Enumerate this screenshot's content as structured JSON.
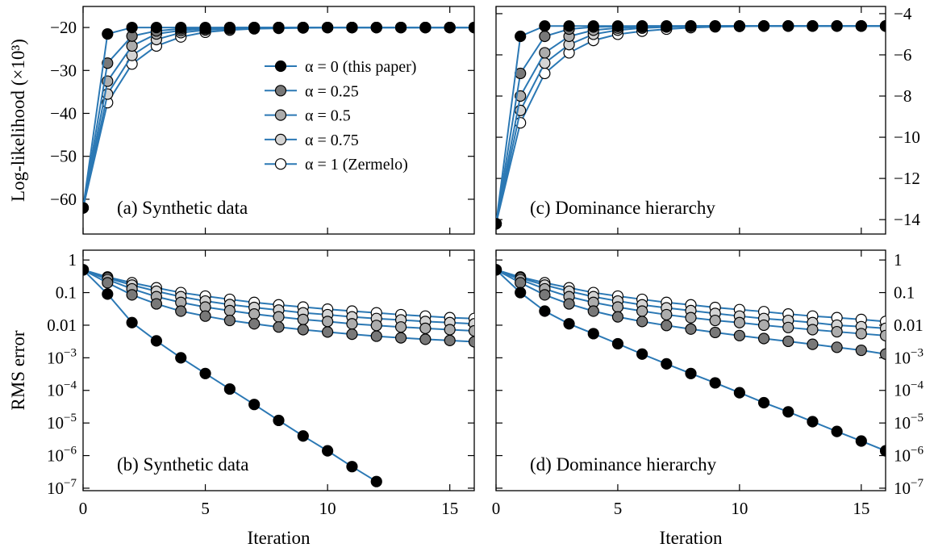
{
  "chart_data": [
    {
      "type": "line",
      "annotation": "(a) Synthetic data",
      "ylabel": "Log-likelihood (×10³)",
      "show_xtick_labels": false,
      "y_axis_side": "left",
      "legend": "upper right",
      "line_color": "#2b78b4",
      "log_y": false,
      "xlim": [
        0,
        16
      ],
      "xticks": [
        0,
        5,
        10,
        15
      ],
      "ylim": [
        -68.1,
        -15.1
      ],
      "yticks": [
        {
          "value": -20,
          "label": "−20"
        },
        {
          "value": -30,
          "label": "−30"
        },
        {
          "value": -40,
          "label": "−40"
        },
        {
          "value": -50,
          "label": "−50"
        },
        {
          "value": -60,
          "label": "−60"
        }
      ],
      "x": [
        0,
        1,
        2,
        3,
        4,
        5,
        6,
        7,
        8,
        9,
        10,
        11,
        12,
        13,
        14,
        15,
        16
      ],
      "series": [
        {
          "name": "α = 0 (this paper)",
          "color": "#000000",
          "values": [
            -62,
            -21.5,
            -20,
            -20,
            -20,
            -20,
            -20,
            -20,
            -20,
            -20,
            -20,
            -20,
            -20,
            -20,
            -20,
            -20,
            -20
          ]
        },
        {
          "name": "α = 0.25",
          "color": "#787878",
          "values": [
            -62,
            -28.3,
            -22,
            -20.8,
            -20.3,
            -20.1,
            -20,
            -20,
            -20,
            -20,
            -20,
            -20,
            -20,
            -20,
            -20,
            -20,
            -20
          ]
        },
        {
          "name": "α = 0.5",
          "color": "#acacac",
          "values": [
            -62,
            -32.5,
            -24.3,
            -21.5,
            -20.7,
            -20.3,
            -20.1,
            -20,
            -20,
            -20,
            -20,
            -20,
            -20,
            -20,
            -20,
            -20,
            -20
          ]
        },
        {
          "name": "α = 0.75",
          "color": "#d4d4d4",
          "values": [
            -62,
            -35.5,
            -26.5,
            -22.8,
            -21.2,
            -20.6,
            -20.3,
            -20.1,
            -20,
            -20,
            -20,
            -20,
            -20,
            -20,
            -20,
            -20,
            -20
          ]
        },
        {
          "name": "α = 1 (Zermelo)",
          "color": "#ffffff",
          "values": [
            -62,
            -37.5,
            -28.5,
            -24.3,
            -22.2,
            -21.1,
            -20.6,
            -20.3,
            -20.2,
            -20.1,
            -20,
            -20,
            -20,
            -20,
            -20,
            -20,
            -20
          ]
        }
      ]
    },
    {
      "type": "line",
      "annotation": "(b) Synthetic data",
      "ylabel": "RMS error",
      "xlabel": "Iteration",
      "show_xtick_labels": true,
      "y_axis_side": "left",
      "line_color": "#2b78b4",
      "log_y": true,
      "xlim": [
        0,
        16
      ],
      "xticks": [
        0,
        5,
        10,
        15
      ],
      "ylim": [
        8.4e-08,
        2
      ],
      "yticks": [
        1,
        0.1,
        0.01,
        {
          "value": 0.001,
          "label": "10",
          "superscript": "−3"
        },
        {
          "value": 0.0001,
          "label": "10",
          "superscript": "−4"
        },
        {
          "value": 1e-05,
          "label": "10",
          "superscript": "−5"
        },
        {
          "value": 1e-06,
          "label": "10",
          "superscript": "−6"
        },
        {
          "value": 1e-07,
          "label": "10",
          "superscript": "−7"
        }
      ],
      "x": [
        0,
        1,
        2,
        3,
        4,
        5,
        6,
        7,
        8,
        9,
        10,
        11,
        12,
        13,
        14,
        15,
        16
      ],
      "series": [
        {
          "color": "#000000",
          "values": [
            0.5,
            0.09,
            0.012,
            0.0033,
            0.001,
            0.00033,
            0.00011,
            3.7e-05,
            1.2e-05,
            4e-06,
            1.4e-06,
            4.6e-07,
            1.6e-07,
            null,
            null,
            null,
            null
          ]
        },
        {
          "color": "#787878",
          "values": [
            0.5,
            0.2,
            0.085,
            0.045,
            0.027,
            0.019,
            0.014,
            0.011,
            0.0088,
            0.0073,
            0.0062,
            0.0053,
            0.0046,
            0.0041,
            0.0037,
            0.0034,
            0.0031
          ]
        },
        {
          "color": "#acacac",
          "values": [
            0.5,
            0.25,
            0.13,
            0.075,
            0.05,
            0.036,
            0.028,
            0.022,
            0.018,
            0.015,
            0.013,
            0.011,
            0.0098,
            0.0088,
            0.008,
            0.0073,
            0.0067
          ]
        },
        {
          "color": "#d4d4d4",
          "values": [
            0.5,
            0.28,
            0.17,
            0.11,
            0.075,
            0.055,
            0.043,
            0.035,
            0.029,
            0.024,
            0.021,
            0.018,
            0.016,
            0.0145,
            0.013,
            0.012,
            0.011
          ]
        },
        {
          "color": "#ffffff",
          "values": [
            0.5,
            0.3,
            0.2,
            0.14,
            0.1,
            0.078,
            0.062,
            0.05,
            0.042,
            0.036,
            0.031,
            0.027,
            0.024,
            0.021,
            0.019,
            0.017,
            0.016
          ]
        }
      ]
    },
    {
      "type": "line",
      "annotation": "(c) Dominance hierarchy",
      "show_xtick_labels": false,
      "y_axis_side": "right",
      "line_color": "#2b78b4",
      "log_y": false,
      "xlim": [
        0,
        16
      ],
      "xticks": [
        0,
        5,
        10,
        15
      ],
      "ylim": [
        -14.7,
        -3.65
      ],
      "yticks": [
        {
          "value": -4,
          "label": "−4"
        },
        {
          "value": -6,
          "label": "−6"
        },
        {
          "value": -8,
          "label": "−8"
        },
        {
          "value": -10,
          "label": "−10"
        },
        {
          "value": -12,
          "label": "−12"
        },
        {
          "value": -14,
          "label": "−14"
        }
      ],
      "x": [
        0,
        1,
        2,
        3,
        4,
        5,
        6,
        7,
        8,
        9,
        10,
        11,
        12,
        13,
        14,
        15,
        16
      ],
      "series": [
        {
          "color": "#000000",
          "values": [
            -14.2,
            -5.1,
            -4.6,
            -4.6,
            -4.6,
            -4.6,
            -4.6,
            -4.6,
            -4.6,
            -4.6,
            -4.6,
            -4.6,
            -4.6,
            -4.6,
            -4.6,
            -4.6,
            -4.6
          ]
        },
        {
          "color": "#787878",
          "values": [
            -14.2,
            -6.9,
            -5.1,
            -4.75,
            -4.65,
            -4.62,
            -4.6,
            -4.6,
            -4.6,
            -4.6,
            -4.6,
            -4.6,
            -4.6,
            -4.6,
            -4.6,
            -4.6,
            -4.6
          ]
        },
        {
          "color": "#acacac",
          "values": [
            -14.2,
            -8,
            -5.9,
            -5.1,
            -4.8,
            -4.7,
            -4.65,
            -4.62,
            -4.6,
            -4.6,
            -4.6,
            -4.6,
            -4.6,
            -4.6,
            -4.6,
            -4.6,
            -4.6
          ]
        },
        {
          "color": "#d4d4d4",
          "values": [
            -14.2,
            -8.7,
            -6.4,
            -5.5,
            -5,
            -4.8,
            -4.7,
            -4.65,
            -4.62,
            -4.6,
            -4.6,
            -4.6,
            -4.6,
            -4.6,
            -4.6,
            -4.6,
            -4.6
          ]
        },
        {
          "color": "#ffffff",
          "values": [
            -14.2,
            -9.3,
            -6.9,
            -5.9,
            -5.3,
            -5,
            -4.85,
            -4.75,
            -4.68,
            -4.64,
            -4.62,
            -4.6,
            -4.6,
            -4.6,
            -4.6,
            -4.6,
            -4.6
          ]
        }
      ]
    },
    {
      "type": "line",
      "annotation": "(d) Dominance hierarchy",
      "xlabel": "Iteration",
      "show_xtick_labels": true,
      "y_axis_side": "right",
      "line_color": "#2b78b4",
      "log_y": true,
      "xlim": [
        0,
        16
      ],
      "xticks": [
        0,
        5,
        10,
        15
      ],
      "ylim": [
        8.4e-08,
        2
      ],
      "yticks": [
        1,
        0.1,
        0.01,
        {
          "value": 0.001,
          "label": "10",
          "superscript": "−3"
        },
        {
          "value": 0.0001,
          "label": "10",
          "superscript": "−4"
        },
        {
          "value": 1e-05,
          "label": "10",
          "superscript": "−5"
        },
        {
          "value": 1e-06,
          "label": "10",
          "superscript": "−6"
        },
        {
          "value": 1e-07,
          "label": "10",
          "superscript": "−7"
        }
      ],
      "x": [
        0,
        1,
        2,
        3,
        4,
        5,
        6,
        7,
        8,
        9,
        10,
        11,
        12,
        13,
        14,
        15,
        16
      ],
      "series": [
        {
          "color": "#000000",
          "values": [
            0.5,
            0.1,
            0.027,
            0.011,
            0.0055,
            0.0027,
            0.0013,
            0.00065,
            0.00033,
            0.00017,
            8.5e-05,
            4.2e-05,
            2.2e-05,
            1.1e-05,
            5.5e-06,
            2.8e-06,
            1.4e-06
          ]
        },
        {
          "color": "#787878",
          "values": [
            0.5,
            0.2,
            0.085,
            0.045,
            0.027,
            0.018,
            0.013,
            0.0098,
            0.0076,
            0.006,
            0.0048,
            0.0039,
            0.0032,
            0.0026,
            0.0021,
            0.0017,
            0.0013
          ]
        },
        {
          "color": "#acacac",
          "values": [
            0.5,
            0.25,
            0.13,
            0.075,
            0.05,
            0.036,
            0.027,
            0.021,
            0.017,
            0.014,
            0.012,
            0.01,
            0.0085,
            0.0073,
            0.0063,
            0.0055,
            0.0048
          ]
        },
        {
          "color": "#d4d4d4",
          "values": [
            0.5,
            0.28,
            0.17,
            0.11,
            0.075,
            0.055,
            0.042,
            0.034,
            0.028,
            0.023,
            0.019,
            0.016,
            0.014,
            0.012,
            0.01,
            0.009,
            0.008
          ]
        },
        {
          "color": "#ffffff",
          "values": [
            0.5,
            0.3,
            0.2,
            0.14,
            0.1,
            0.078,
            0.062,
            0.05,
            0.042,
            0.035,
            0.03,
            0.026,
            0.022,
            0.019,
            0.017,
            0.015,
            0.013
          ]
        }
      ]
    }
  ]
}
